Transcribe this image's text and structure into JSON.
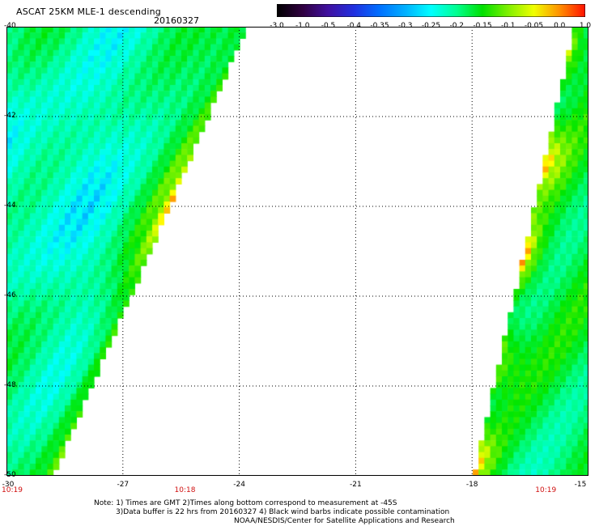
{
  "header": {
    "title": "ASCAT 25KM MLE-1 descending",
    "date": "20160327"
  },
  "colorbar": {
    "labels": [
      "-3.0",
      "-1.0",
      "-0.5",
      "-0.4",
      "-0.35",
      "-0.3",
      "-0.25",
      "-0.2",
      "-0.15",
      "-0.1",
      "-0.05",
      "0.0",
      "1.0"
    ],
    "colors": [
      "#000000",
      "#300040",
      "#4010a0",
      "#2030e0",
      "#0070ff",
      "#00b0ff",
      "#00ffff",
      "#00ff90",
      "#00e000",
      "#80f000",
      "#f0ff00",
      "#ff9000",
      "#ff1000"
    ]
  },
  "map": {
    "lon_range": [
      -30,
      -15
    ],
    "lat_range": [
      -50,
      -40
    ],
    "lon_ticks": [
      "-30",
      "-27",
      "-24",
      "-21",
      "-18",
      "-15"
    ],
    "lat_ticks": [
      "-40",
      "-42",
      "-44",
      "-46",
      "-48",
      "-50"
    ],
    "lon_values": [
      -30,
      -27,
      -24,
      -21,
      -18,
      -15
    ],
    "lat_values": [
      -40,
      -42,
      -44,
      -46,
      -48,
      -50
    ],
    "times": [
      {
        "label": "10:19",
        "lon": -30
      },
      {
        "label": "10:18",
        "lon": -25.4
      },
      {
        "label": "10:19",
        "lon": -16.1
      }
    ],
    "swaths": [
      {
        "name": "west",
        "lon_min": -30,
        "edge_top_lon": -23.8,
        "edge_bottom_lon": -28.8
      },
      {
        "name": "east",
        "lon_max": -15,
        "edge_top_lon": -15.4,
        "edge_bottom_lon": -18.0
      }
    ]
  },
  "notes": {
    "line1": "Note: 1) Times are GMT 2)Times along bottom correspond to measurement at -45S",
    "line2": "3)Data buffer is 22 hrs from 20160327 4) Black wind barbs indicate possible contamination",
    "line3": "NOAA/NESDIS/Center for Satellite Applications and Research"
  }
}
